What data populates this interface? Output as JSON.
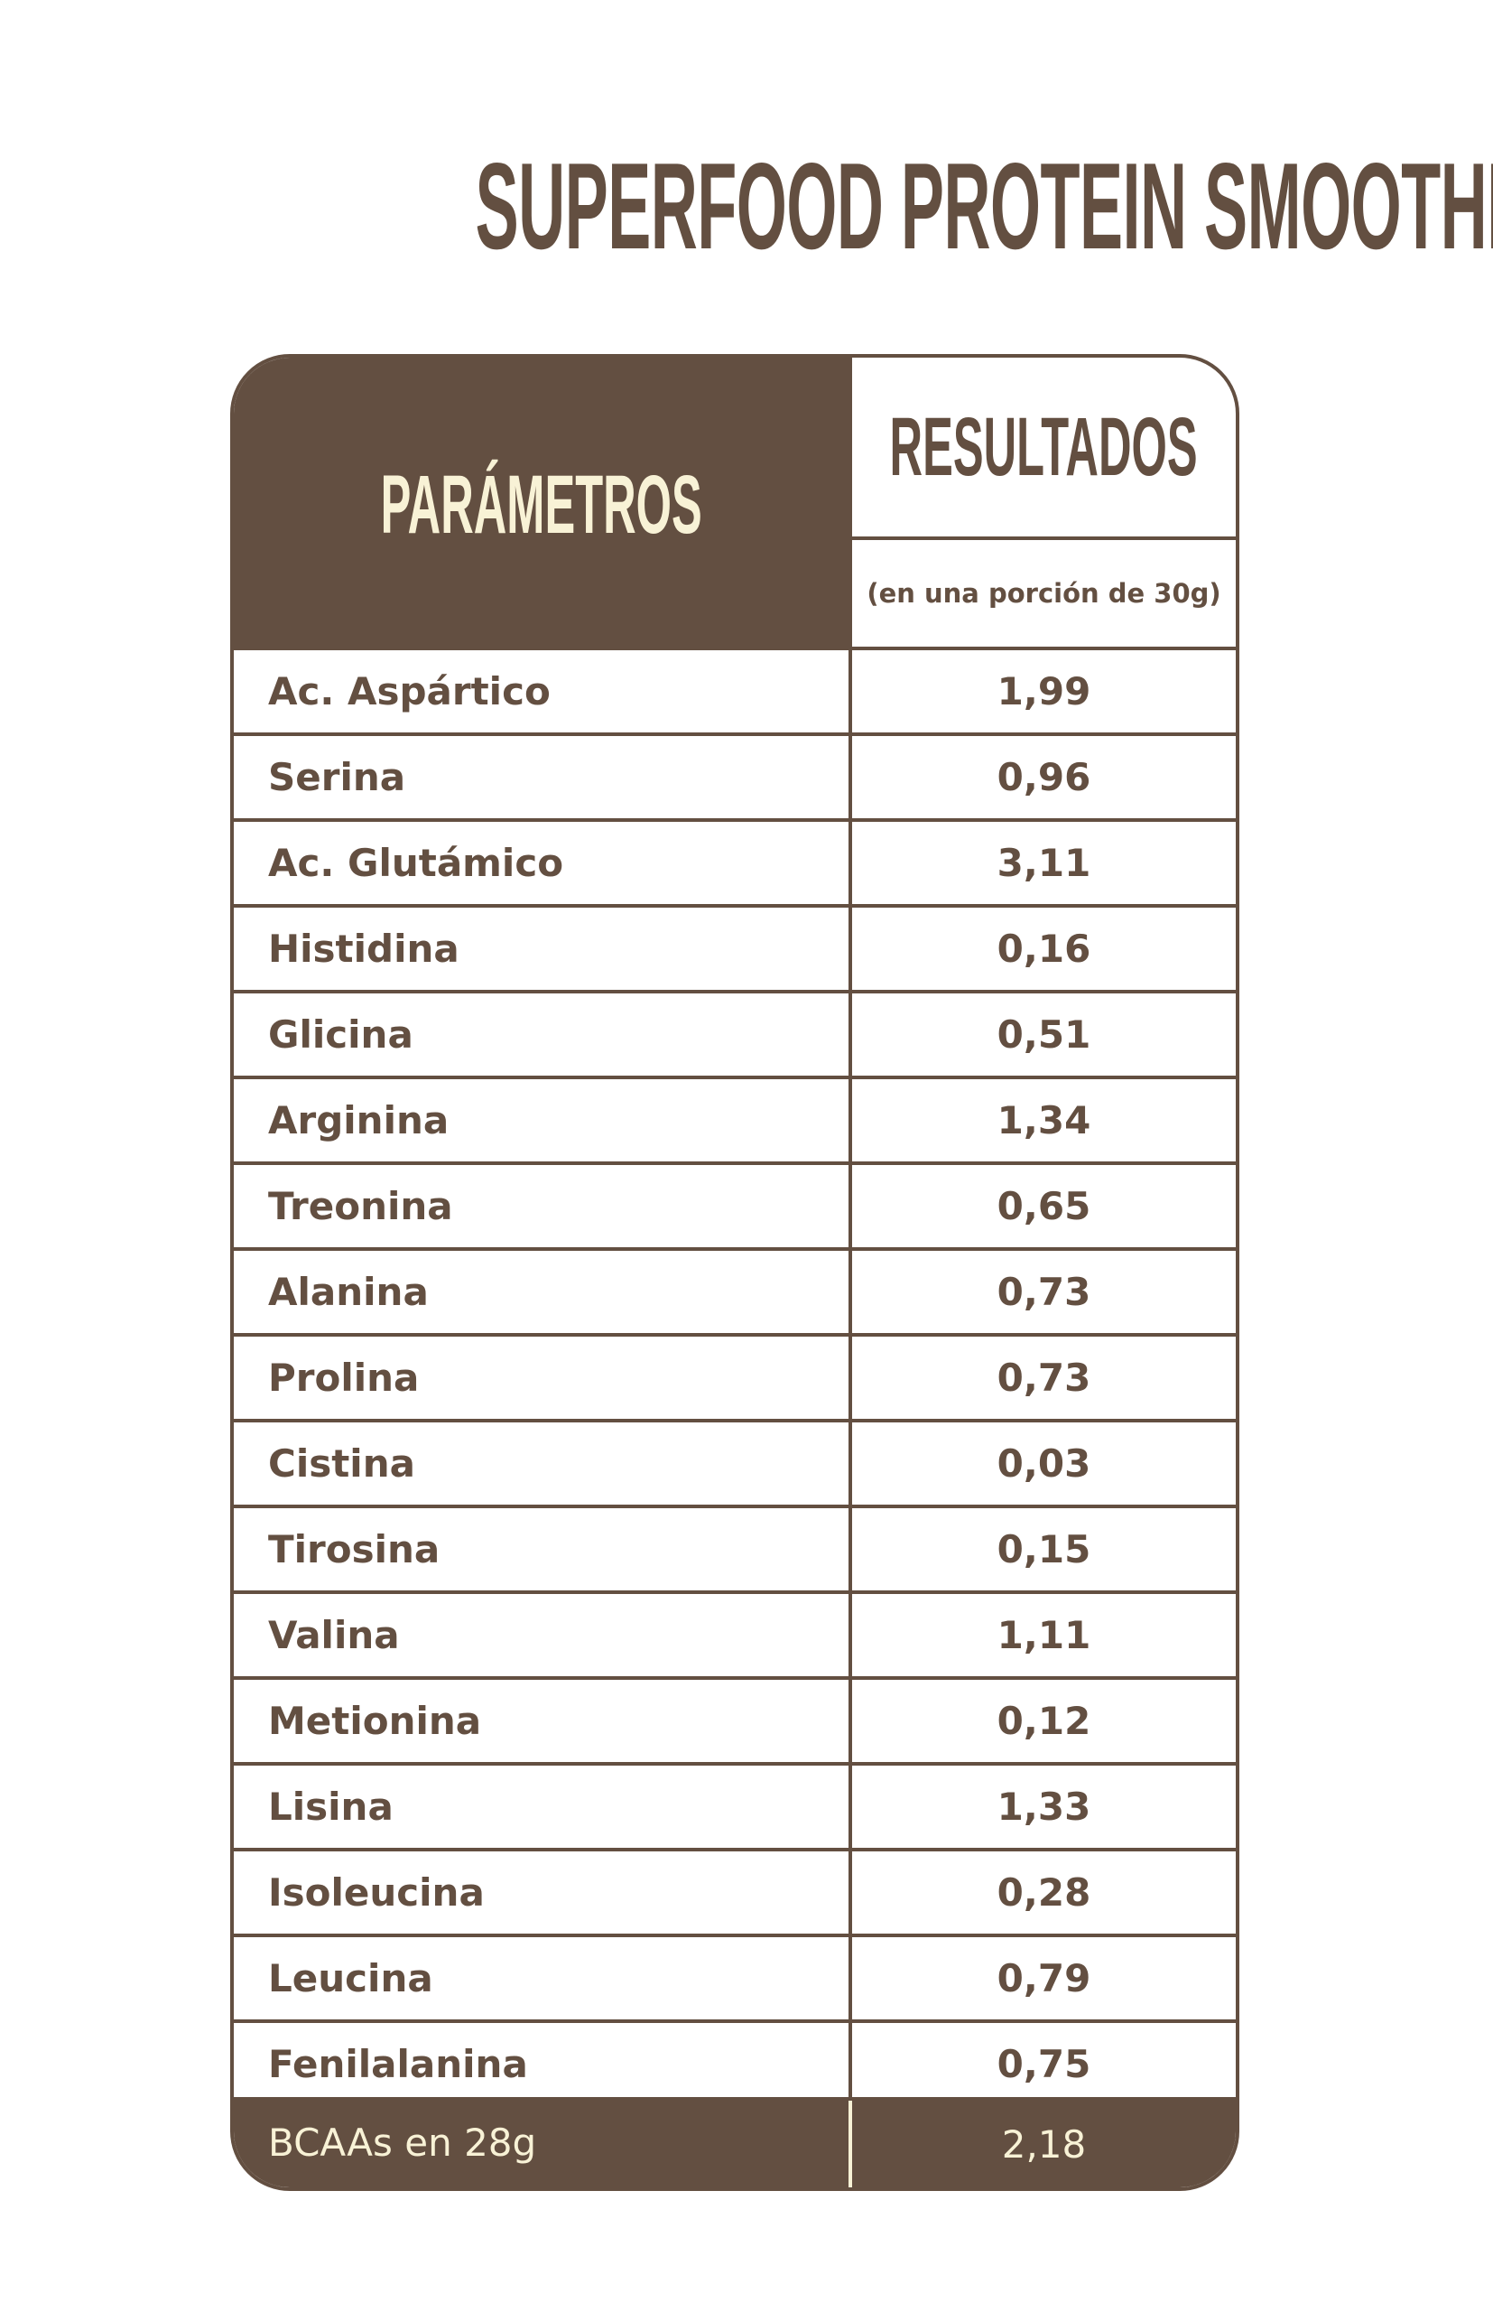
{
  "title": "SUPERFOOD PROTEIN SMOOTHIE",
  "colors": {
    "brown": "#634F41",
    "cream": "#F8F2D6"
  },
  "table": {
    "header_parameters": "PARÁMETROS",
    "header_results": "RESULTADOS",
    "header_results_sub": "(en una porción de 30g)",
    "rows": [
      {
        "name": "Ac. Aspártico",
        "value": "1,99"
      },
      {
        "name": "Serina",
        "value": "0,96"
      },
      {
        "name": "Ac. Glutámico",
        "value": "3,11"
      },
      {
        "name": "Histidina",
        "value": "0,16"
      },
      {
        "name": "Glicina",
        "value": "0,51"
      },
      {
        "name": "Arginina",
        "value": "1,34"
      },
      {
        "name": "Treonina",
        "value": "0,65"
      },
      {
        "name": "Alanina",
        "value": "0,73"
      },
      {
        "name": "Prolina",
        "value": "0,73"
      },
      {
        "name": "Cistina",
        "value": "0,03"
      },
      {
        "name": "Tirosina",
        "value": "0,15"
      },
      {
        "name": "Valina",
        "value": "1,11"
      },
      {
        "name": "Metionina",
        "value": "0,12"
      },
      {
        "name": "Lisina",
        "value": "1,33"
      },
      {
        "name": "Isoleucina",
        "value": "0,28"
      },
      {
        "name": "Leucina",
        "value": "0,79"
      },
      {
        "name": "Fenilalanina",
        "value": "0,75"
      }
    ],
    "footer": {
      "name": "BCAAs en 28g",
      "value": "2,18"
    }
  }
}
